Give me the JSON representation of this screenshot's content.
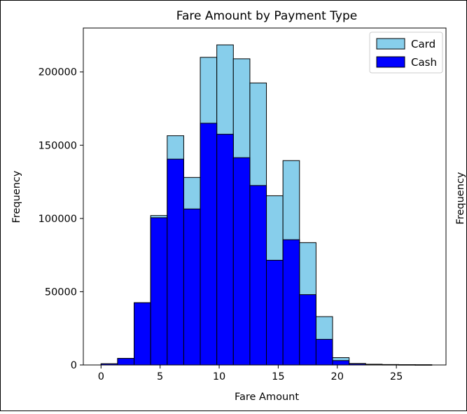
{
  "chart_data": {
    "type": "bar",
    "title": "Fare Amount by Payment Type",
    "xlabel": "Fare Amount",
    "ylabel": "Frequency",
    "right_ylabel": "Frequency",
    "xlim": [
      -1.5,
      29.2
    ],
    "ylim": [
      0,
      230000
    ],
    "xticks": [
      0,
      5,
      10,
      15,
      20,
      25
    ],
    "yticks": [
      0,
      50000,
      100000,
      150000,
      200000
    ],
    "bin_edges": [
      0,
      1.4,
      2.8,
      4.2,
      5.6,
      7.0,
      8.4,
      9.8,
      11.2,
      12.6,
      14.0,
      15.4,
      16.8,
      18.2,
      19.6,
      21.0,
      22.4,
      23.8,
      25.2,
      26.6,
      28.0
    ],
    "series": [
      {
        "name": "Card",
        "color": "#87ceeb",
        "values": [
          800,
          4500,
          42500,
          102000,
          156500,
          128000,
          210000,
          218500,
          209000,
          192500,
          115500,
          139500,
          83500,
          33000,
          5000,
          1000,
          500,
          300,
          200,
          150
        ]
      },
      {
        "name": "Cash",
        "color": "#0000ff",
        "values": [
          800,
          4500,
          42500,
          100500,
          140500,
          106500,
          165000,
          157500,
          141500,
          122500,
          71500,
          85500,
          48000,
          17500,
          3000,
          800,
          300,
          200,
          150,
          100
        ]
      }
    ],
    "grid": false,
    "legend_position": "top-right",
    "bar_edge_color": "#000000"
  }
}
